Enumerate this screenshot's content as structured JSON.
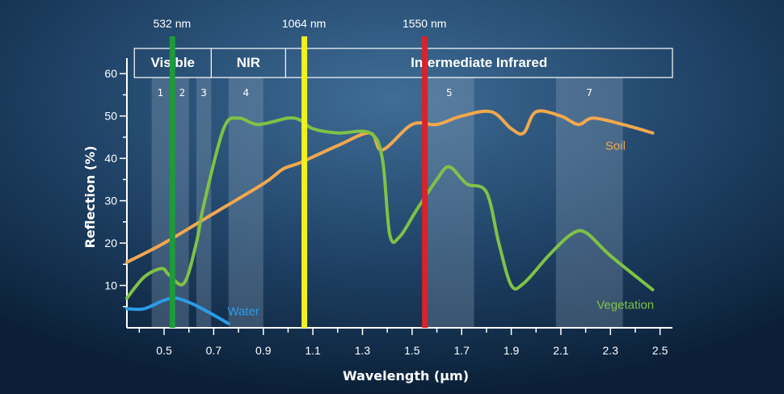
{
  "chart_data": {
    "type": "line",
    "title": "",
    "xlabel": "Wavelength (μm)",
    "ylabel": "Reflection (%)",
    "xlim": [
      0.35,
      2.55
    ],
    "ylim": [
      0,
      65
    ],
    "x_ticks": [
      {
        "value": 0.5,
        "label": "0.5"
      },
      {
        "value": 0.7,
        "label": "0.7"
      },
      {
        "value": 0.9,
        "label": "0.9"
      },
      {
        "value": 1.1,
        "label": "1.1"
      },
      {
        "value": 1.3,
        "label": "1.3"
      },
      {
        "value": 1.5,
        "label": "1.5"
      },
      {
        "value": 1.7,
        "label": "1.7"
      },
      {
        "value": 1.9,
        "label": "1.9"
      },
      {
        "value": 2.1,
        "label": "2.1"
      },
      {
        "value": 2.3,
        "label": "2.3"
      },
      {
        "value": 2.5,
        "label": "2.5"
      }
    ],
    "y_ticks": [
      {
        "value": 10,
        "label": "10"
      },
      {
        "value": 20,
        "label": "20"
      },
      {
        "value": 30,
        "label": "30"
      },
      {
        "value": 40,
        "label": "40"
      },
      {
        "value": 50,
        "label": "50"
      },
      {
        "value": 60,
        "label": "60"
      }
    ],
    "regions": [
      {
        "name": "visible",
        "label": "Visible",
        "x0": 0.38,
        "x1": 0.69
      },
      {
        "name": "nir",
        "label": "NIR",
        "x0": 0.69,
        "x1": 0.99
      },
      {
        "name": "intermediate-infrared",
        "label": "Intermediate Infrared",
        "x0": 0.99,
        "x1": 2.55
      }
    ],
    "bands": [
      {
        "label": "1",
        "x0": 0.45,
        "x1": 0.52
      },
      {
        "label": "2",
        "x0": 0.52,
        "x1": 0.6
      },
      {
        "label": "3",
        "x0": 0.63,
        "x1": 0.69
      },
      {
        "label": "4",
        "x0": 0.76,
        "x1": 0.9
      },
      {
        "label": "5",
        "x0": 1.55,
        "x1": 1.75
      },
      {
        "label": "7",
        "x0": 2.08,
        "x1": 2.35
      }
    ],
    "markers": [
      {
        "label": "532 nm",
        "x": 0.532,
        "color": "#1e9a3c"
      },
      {
        "label": "1064 nm",
        "x": 1.064,
        "color": "#f3f01e"
      },
      {
        "label": "1550 nm",
        "x": 1.55,
        "color": "#d9222a"
      }
    ],
    "series": [
      {
        "name": "Soil",
        "color": "#f2a84e",
        "points": [
          [
            0.35,
            15.5
          ],
          [
            0.5,
            20
          ],
          [
            0.7,
            27
          ],
          [
            0.9,
            34
          ],
          [
            0.98,
            37.5
          ],
          [
            1.05,
            39
          ],
          [
            1.2,
            43
          ],
          [
            1.33,
            46
          ],
          [
            1.38,
            42
          ],
          [
            1.5,
            48
          ],
          [
            1.6,
            48
          ],
          [
            1.7,
            50
          ],
          [
            1.82,
            51
          ],
          [
            1.9,
            47
          ],
          [
            1.95,
            46
          ],
          [
            2.0,
            51
          ],
          [
            2.1,
            50
          ],
          [
            2.17,
            48
          ],
          [
            2.23,
            49.5
          ],
          [
            2.35,
            48
          ],
          [
            2.47,
            46
          ]
        ]
      },
      {
        "name": "Vegetation",
        "color": "#7fc246",
        "points": [
          [
            0.35,
            7
          ],
          [
            0.42,
            12
          ],
          [
            0.49,
            14
          ],
          [
            0.52,
            12.5
          ],
          [
            0.58,
            10.5
          ],
          [
            0.63,
            20
          ],
          [
            0.66,
            29
          ],
          [
            0.74,
            47
          ],
          [
            0.8,
            49.5
          ],
          [
            0.88,
            48
          ],
          [
            1.0,
            49.5
          ],
          [
            1.05,
            49
          ],
          [
            1.1,
            47
          ],
          [
            1.2,
            46
          ],
          [
            1.33,
            46
          ],
          [
            1.38,
            40
          ],
          [
            1.41,
            22
          ],
          [
            1.45,
            21.5
          ],
          [
            1.52,
            28
          ],
          [
            1.6,
            35
          ],
          [
            1.65,
            38
          ],
          [
            1.72,
            34
          ],
          [
            1.8,
            32
          ],
          [
            1.85,
            20
          ],
          [
            1.9,
            10
          ],
          [
            1.95,
            10.5
          ],
          [
            2.05,
            17
          ],
          [
            2.14,
            22
          ],
          [
            2.2,
            22.5
          ],
          [
            2.3,
            17
          ],
          [
            2.47,
            9
          ]
        ]
      },
      {
        "name": "Water",
        "color": "#2b9be8",
        "points": [
          [
            0.35,
            4.5
          ],
          [
            0.42,
            4.5
          ],
          [
            0.5,
            6.5
          ],
          [
            0.55,
            7
          ],
          [
            0.62,
            5.5
          ],
          [
            0.7,
            3
          ],
          [
            0.76,
            1
          ]
        ]
      }
    ],
    "series_labels": [
      {
        "name": "soil",
        "label": "Soil",
        "x": 2.32,
        "y": 42,
        "color": "#f2a84e"
      },
      {
        "name": "vegetation",
        "label": "Vegetation",
        "x": 2.36,
        "y": 4.5,
        "color": "#7fc246"
      },
      {
        "name": "water",
        "label": "Water",
        "x": 0.82,
        "y": 3,
        "color": "#2b9be8"
      }
    ]
  }
}
